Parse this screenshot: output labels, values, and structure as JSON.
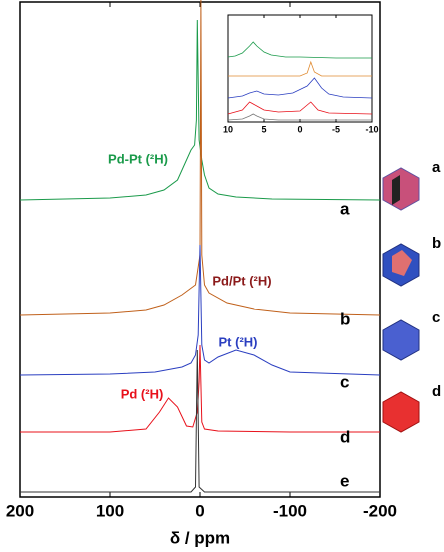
{
  "chart_data": [
    {
      "type": "line",
      "xlabel": "δ / ppm",
      "xlim": [
        200,
        -200
      ],
      "xticks": [
        200,
        100,
        0,
        -100,
        -200
      ],
      "series": [
        {
          "name": "a",
          "color": "#1a9a4a",
          "x": [
            200,
            100,
            60,
            40,
            25,
            15,
            10,
            6,
            4,
            3,
            2,
            1,
            -2,
            -5,
            -10,
            -20,
            -40,
            -80,
            -200
          ],
          "values": [
            0,
            2,
            5,
            10,
            20,
            40,
            50,
            55,
            80,
            180,
            120,
            60,
            40,
            25,
            12,
            6,
            3,
            1,
            0
          ]
        },
        {
          "name": "b",
          "color": "#c0601a",
          "x": [
            200,
            100,
            60,
            40,
            20,
            5,
            0,
            -1,
            -2,
            -5,
            -10,
            -30,
            -60,
            -100,
            -200
          ],
          "values": [
            0,
            2,
            5,
            10,
            20,
            30,
            60,
            315,
            60,
            30,
            22,
            12,
            6,
            2,
            0
          ]
        },
        {
          "name": "c",
          "color": "#2a3ec0",
          "x": [
            200,
            100,
            50,
            20,
            10,
            5,
            2,
            0,
            -2,
            -5,
            -10,
            -20,
            -40,
            -60,
            -80,
            -100,
            -200
          ],
          "values": [
            0,
            1,
            3,
            8,
            12,
            20,
            40,
            130,
            30,
            15,
            12,
            18,
            25,
            20,
            10,
            3,
            0
          ]
        },
        {
          "name": "d",
          "color": "#e8101a",
          "x": [
            200,
            100,
            60,
            45,
            35,
            25,
            15,
            8,
            3,
            1,
            0,
            -2,
            -5,
            -20,
            -100,
            -200
          ],
          "values": [
            0,
            0,
            3,
            20,
            34,
            25,
            6,
            5,
            20,
            50,
            87,
            10,
            3,
            1,
            0,
            0
          ]
        },
        {
          "name": "e",
          "color": "#333333",
          "x": [
            200,
            10,
            5,
            3,
            1,
            -5,
            -200
          ],
          "values": [
            0,
            0,
            5,
            142,
            5,
            0,
            0
          ]
        }
      ],
      "annotations": [
        {
          "text": "Pd-Pt (²H)",
          "color": "#1a9a4a"
        },
        {
          "text": "Pd/Pt (²H)",
          "color": "#8b1a1a"
        },
        {
          "text": "Pt (²H)",
          "color": "#2a3ec0"
        },
        {
          "text": "Pd (²H)",
          "color": "#e8101a"
        }
      ]
    },
    {
      "type": "line",
      "xlim": [
        10,
        -10
      ],
      "xticks": [
        10,
        5,
        0,
        -5,
        -10
      ],
      "series": [
        {
          "color": "#1a9a4a",
          "x": [
            10,
            9,
            8,
            7,
            6.5,
            6,
            5,
            4,
            2,
            0,
            -5,
            -10
          ],
          "values": [
            1,
            2,
            5,
            12,
            16,
            12,
            6,
            3,
            1,
            1,
            0,
            0
          ]
        },
        {
          "color": "#e08a30",
          "x": [
            10,
            0,
            -1,
            -1.5,
            -2,
            -3,
            -10
          ],
          "values": [
            0,
            0,
            3,
            14,
            4,
            0,
            0
          ]
        },
        {
          "color": "#2a3ec0",
          "x": [
            10,
            8,
            7,
            6,
            5,
            3,
            1,
            -1,
            -2,
            -3,
            -4,
            -6,
            -10
          ],
          "values": [
            0,
            2,
            5,
            7,
            4,
            3,
            5,
            12,
            20,
            10,
            4,
            1,
            0
          ]
        },
        {
          "color": "#e8101a",
          "x": [
            10,
            8,
            7,
            6,
            5,
            3,
            0,
            -1.5,
            -2.5,
            -4,
            -10
          ],
          "values": [
            0,
            4,
            12,
            8,
            4,
            2,
            3,
            12,
            4,
            1,
            0
          ]
        },
        {
          "color": "#777777",
          "x": [
            10,
            8,
            7,
            6.5,
            6,
            5,
            3,
            -10
          ],
          "values": [
            0,
            1,
            4,
            6,
            4,
            1,
            0,
            0
          ]
        }
      ]
    },
    {
      "type": "image-labels",
      "labels": [
        "a",
        "b",
        "c",
        "d"
      ]
    }
  ]
}
